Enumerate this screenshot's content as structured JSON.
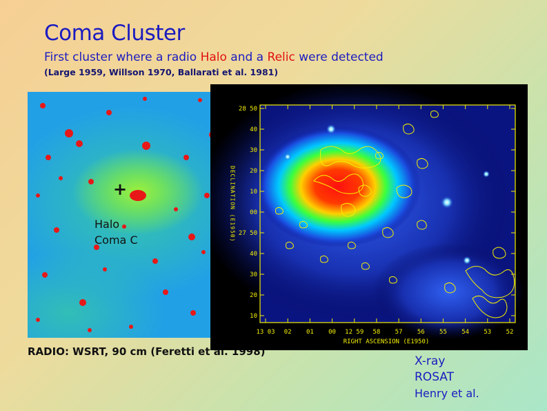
{
  "title": "Coma Cluster",
  "subtitle": {
    "part1": "First cluster where  a radio ",
    "halo": "Halo",
    "part2": " and  a ",
    "relic": "Relic",
    "part3": " were detected"
  },
  "references": "(Large 1959, Willson 1970, Ballarati et al. 1981)",
  "radio_image": {
    "marker": "+",
    "label_line1": "Halo",
    "label_line2": "Coma C",
    "caption": "RADIO: WSRT, 90 cm (Feretti et al. 1998)"
  },
  "xray_image": {
    "y_axis_label": "DECLINATION (E1950)",
    "x_axis_label": "RIGHT ASCENSION (E1950)",
    "y_ticks": [
      "28 50",
      "40",
      "30",
      "20",
      "10",
      "00",
      "27 50",
      "40",
      "30",
      "20",
      "10"
    ],
    "x_ticks": [
      "13 03",
      "02",
      "01",
      "00",
      "12 59",
      "58",
      "57",
      "56",
      "55",
      "54",
      "53",
      "52"
    ],
    "caption_line1": "X-ray",
    "caption_line2": "ROSAT",
    "caption_line3": "Henry et al."
  },
  "colors": {
    "title_blue": "#1b1bc0",
    "highlight_red": "#e01010",
    "contour_yellow": "#f4f000"
  }
}
